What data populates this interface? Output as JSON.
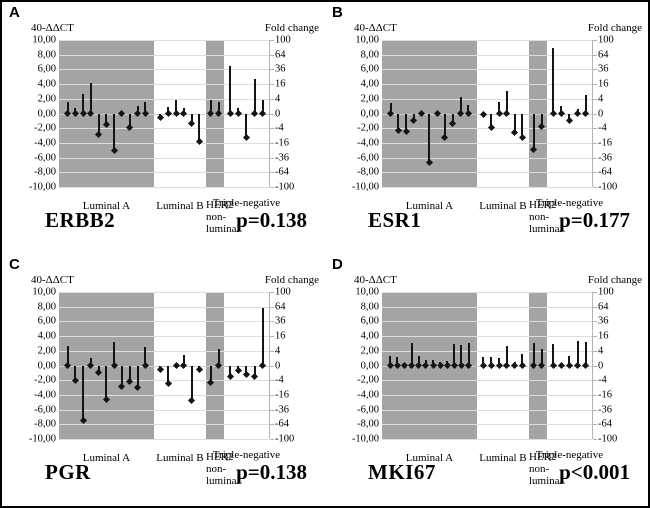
{
  "figure": {
    "background": "#ffffff",
    "border_color": "#000000"
  },
  "colors": {
    "band": "#a4a4a4",
    "grid": "#dedede",
    "grid_zero": "#cccccc",
    "bar": "#141414",
    "axis_line": "#b3b3b3",
    "text": "#000000"
  },
  "axes": {
    "left_label": "40-ΔΔCT",
    "right_label": "Fold change",
    "left_ticks": [
      "10,00",
      "8,00",
      "6,00",
      "4,00",
      "2,00",
      "0,00",
      "-2,00",
      "-4,00",
      "-6,00",
      "-8,00",
      "-10,00"
    ],
    "right_ticks": [
      "100",
      "64",
      "36",
      "16",
      "4",
      "0",
      "-4",
      "-16",
      "-36",
      "-64",
      "-100"
    ],
    "ylim": [
      -10,
      10
    ]
  },
  "groups": [
    {
      "name": "Luminal A",
      "label_lines": [
        "Luminal A"
      ],
      "shaded": true,
      "span": [
        0.0,
        0.452
      ]
    },
    {
      "name": "Luminal B",
      "label_lines": [
        "Luminal B"
      ],
      "shaded": false,
      "span": [
        0.452,
        0.7
      ]
    },
    {
      "name": "HER2 non-luminal",
      "label_lines": [
        "HER2",
        "non-",
        "luminal"
      ],
      "shaded": true,
      "span": [
        0.7,
        0.785
      ]
    },
    {
      "name": "Triple-negative",
      "label_lines": [
        "Triple-negative"
      ],
      "shaded": false,
      "span": [
        0.785,
        1.0
      ]
    }
  ],
  "chart_data": [
    {
      "type": "bar",
      "panel": "A",
      "gene": "ERBB2",
      "p_label": "p=0.138",
      "ylabel": "40-ΔΔCT",
      "y2label": "Fold change",
      "ylim": [
        -10,
        10
      ],
      "categories": [
        "Luminal A",
        "Luminal B",
        "HER2 non-luminal",
        "Triple-negative"
      ],
      "groups": [
        {
          "name": "Luminal A",
          "values": [
            1.5,
            0.7,
            2.7,
            4.1,
            -2.8,
            -1.5,
            -5.0,
            0.2,
            -1.9,
            1.0,
            1.6
          ]
        },
        {
          "name": "Luminal B",
          "values": [
            -0.5,
            0.9,
            1.8,
            0.7,
            -1.3,
            -3.8
          ]
        },
        {
          "name": "HER2 non-luminal",
          "values": [
            1.9,
            1.5
          ]
        },
        {
          "name": "Triple-negative",
          "values": [
            6.4,
            0.8,
            -3.3,
            4.7,
            1.8
          ]
        }
      ]
    },
    {
      "type": "bar",
      "panel": "B",
      "gene": "ESR1",
      "p_label": "p=0.177",
      "ylabel": "40-ΔΔCT",
      "y2label": "Fold change",
      "ylim": [
        -10,
        10
      ],
      "categories": [
        "Luminal A",
        "Luminal B",
        "HER2 non-luminal",
        "Triple-negative"
      ],
      "groups": [
        {
          "name": "Luminal A",
          "values": [
            1.4,
            -2.3,
            -2.5,
            -0.9,
            0.2,
            -6.6,
            0.2,
            -3.3,
            -1.4,
            2.2,
            1.1
          ]
        },
        {
          "name": "Luminal B",
          "values": [
            -0.2,
            -1.9,
            1.5,
            3.1,
            -2.6,
            -3.3
          ]
        },
        {
          "name": "HER2 non-luminal",
          "values": [
            -4.9,
            -1.8
          ]
        },
        {
          "name": "Triple-negative",
          "values": [
            8.9,
            1.0,
            -0.9,
            0.6,
            2.5
          ]
        }
      ]
    },
    {
      "type": "bar",
      "panel": "C",
      "gene": "PGR",
      "p_label": "p=0.138",
      "ylabel": "40-ΔΔCT",
      "y2label": "Fold change",
      "ylim": [
        -10,
        10
      ],
      "categories": [
        "Luminal A",
        "Luminal B",
        "HER2 non-luminal",
        "Triple-negative"
      ],
      "groups": [
        {
          "name": "Luminal A",
          "values": [
            2.6,
            -2.0,
            -7.5,
            1.0,
            -0.9,
            -4.6,
            3.2,
            -2.9,
            -2.2,
            -3.0,
            2.5
          ]
        },
        {
          "name": "Luminal B",
          "values": [
            -0.5,
            -2.4,
            0.2,
            1.4,
            -4.8,
            -0.6
          ]
        },
        {
          "name": "HER2 non-luminal",
          "values": [
            -2.3,
            2.3
          ]
        },
        {
          "name": "Triple-negative",
          "values": [
            -1.5,
            -0.7,
            -1.2,
            -1.5,
            7.8
          ]
        }
      ]
    },
    {
      "type": "bar",
      "panel": "D",
      "gene": "MKI67",
      "p_label": "p<0.001",
      "ylabel": "40-ΔΔCT",
      "y2label": "Fold change",
      "ylim": [
        -10,
        10
      ],
      "categories": [
        "Luminal A",
        "Luminal B",
        "HER2 non-luminal",
        "Triple-negative"
      ],
      "groups": [
        {
          "name": "Luminal A",
          "values": [
            1.3,
            1.2,
            0.2,
            3.1,
            1.3,
            0.8,
            0.7,
            0.5,
            0.6,
            2.9,
            2.8,
            3.0
          ]
        },
        {
          "name": "Luminal B",
          "values": [
            1.2,
            1.1,
            1.0,
            2.6,
            0.5,
            1.5
          ]
        },
        {
          "name": "HER2 non-luminal",
          "values": [
            3.0,
            2.3
          ]
        },
        {
          "name": "Triple-negative",
          "values": [
            2.9,
            0.2,
            1.3,
            3.3,
            3.2
          ]
        }
      ]
    }
  ]
}
